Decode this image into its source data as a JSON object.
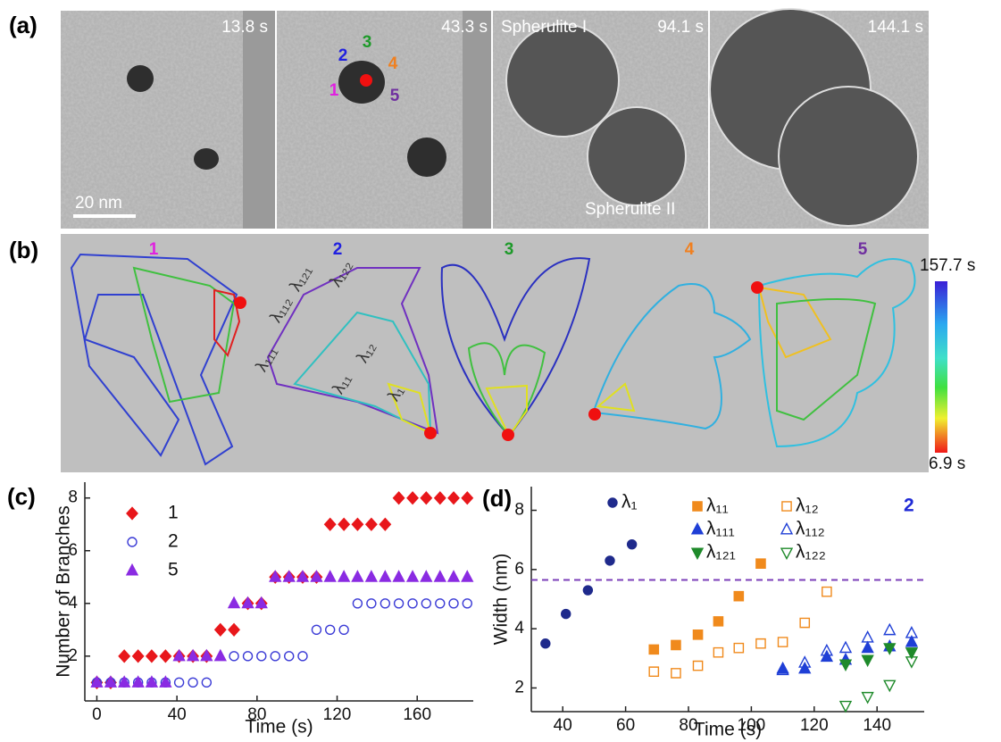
{
  "panels": {
    "a": {
      "label": "(a)",
      "times": [
        "13.8 s",
        "43.3 s",
        "94.1 s",
        "144.1 s"
      ],
      "scale_bar": "20 nm",
      "branch_numbers": [
        "1",
        "2",
        "3",
        "4",
        "5"
      ],
      "spherulite_1": "Spherulite I",
      "spherulite_2": "Spherulite II"
    },
    "b": {
      "label": "(b)",
      "branch_titles": [
        "1",
        "2",
        "3",
        "4",
        "5"
      ],
      "branch_labels": [
        "λ₁₁₁",
        "λ₁₁₂",
        "λ₁₂₁",
        "λ₁₂₂",
        "λ₁₁",
        "λ₁₂",
        "λ₁"
      ],
      "colorbar_max": "157.7 s",
      "colorbar_min": "6.9 s"
    }
  },
  "chart_data": [
    {
      "type": "scatter",
      "panel_label": "(c)",
      "x_label": "Time (s)",
      "y_label": "Number of Branches",
      "xlim": [
        -6,
        188
      ],
      "xticks": [
        0,
        40,
        80,
        120,
        160
      ],
      "ylim": [
        0.3,
        8.6
      ],
      "yticks": [
        2,
        4,
        6,
        8
      ],
      "x": [
        0,
        6.9,
        13.7,
        20.6,
        27.4,
        34.3,
        41.1,
        48,
        54.8,
        61.7,
        68.5,
        75.4,
        82.2,
        89.1,
        96,
        102.8,
        109.7,
        116.5,
        123.4,
        130.2,
        137.1,
        144,
        150.8,
        157.7,
        164.5,
        171.4,
        178.2,
        185
      ],
      "series": [
        {
          "name": "1",
          "color": "#e8171b",
          "marker": "diamond",
          "filled": true,
          "values": [
            1,
            1,
            2,
            2,
            2,
            2,
            2,
            2,
            2,
            3,
            3,
            4,
            4,
            5,
            5,
            5,
            5,
            7,
            7,
            7,
            7,
            7,
            8,
            8,
            8,
            8,
            8,
            8
          ]
        },
        {
          "name": "2",
          "color": "#3b3bd6",
          "marker": "circle",
          "filled": false,
          "values": [
            1,
            1,
            1,
            1,
            1,
            1,
            1,
            1,
            1,
            null,
            2,
            2,
            2,
            2,
            2,
            2,
            3,
            3,
            3,
            4,
            4,
            4,
            4,
            4,
            4,
            4,
            4,
            4
          ]
        },
        {
          "name": "5",
          "color": "#8a2be2",
          "marker": "triangle-up",
          "filled": true,
          "values": [
            1,
            1,
            1,
            1,
            1,
            1,
            2,
            2,
            2,
            2,
            4,
            4,
            4,
            5,
            5,
            5,
            5,
            5,
            5,
            5,
            5,
            5,
            5,
            5,
            5,
            5,
            5,
            5
          ]
        }
      ]
    },
    {
      "type": "scatter",
      "panel_label": "(d)",
      "x_label": "Time (s)",
      "y_label": "Width (nm)",
      "annotation": "2",
      "xlim": [
        30,
        155
      ],
      "xticks": [
        40,
        60,
        80,
        100,
        120,
        140
      ],
      "ylim": [
        1.2,
        8.8
      ],
      "yticks": [
        2,
        4,
        6,
        8
      ],
      "reference_line": 5.65,
      "reference_color": "#7b3fb8",
      "series": [
        {
          "name": "λ₁",
          "color": "#1f2a8c",
          "marker": "circle",
          "filled": true,
          "x": [
            34.5,
            41,
            48,
            55,
            62
          ],
          "values": [
            3.5,
            4.5,
            5.3,
            6.3,
            6.85
          ]
        },
        {
          "name": "λ₁₁",
          "color": "#f08a1c",
          "marker": "square",
          "filled": true,
          "x": [
            69,
            76,
            83,
            89.5,
            96,
            103
          ],
          "values": [
            3.3,
            3.45,
            3.8,
            4.25,
            5.1,
            6.2
          ]
        },
        {
          "name": "λ₁₂",
          "color": "#f08a1c",
          "marker": "square",
          "filled": false,
          "x": [
            69,
            76,
            83,
            89.5,
            96,
            103,
            110,
            117,
            124
          ],
          "values": [
            2.55,
            2.5,
            2.75,
            3.2,
            3.35,
            3.5,
            3.55,
            4.2,
            5.25
          ]
        },
        {
          "name": "λ₁₁₁",
          "color": "#1f3fd6",
          "marker": "triangle-up",
          "filled": true,
          "x": [
            110,
            117,
            124,
            130,
            137,
            144,
            151
          ],
          "values": [
            2.65,
            2.65,
            3.05,
            2.95,
            3.35,
            3.4,
            3.55
          ]
        },
        {
          "name": "λ₁₁₂",
          "color": "#1f3fd6",
          "marker": "triangle-up",
          "filled": false,
          "x": [
            110,
            117,
            124,
            130,
            137,
            144,
            151
          ],
          "values": [
            2.6,
            2.85,
            3.25,
            3.35,
            3.7,
            3.95,
            3.85
          ]
        },
        {
          "name": "λ₁₂₁",
          "color": "#1e8a2a",
          "marker": "triangle-down",
          "filled": true,
          "x": [
            130,
            137,
            144,
            151
          ],
          "values": [
            2.8,
            2.95,
            3.35,
            3.2
          ]
        },
        {
          "name": "λ₁₂₂",
          "color": "#1e8a2a",
          "marker": "triangle-down",
          "filled": false,
          "x": [
            130,
            137,
            144,
            151
          ],
          "values": [
            1.4,
            1.7,
            2.1,
            2.9
          ]
        }
      ]
    }
  ]
}
